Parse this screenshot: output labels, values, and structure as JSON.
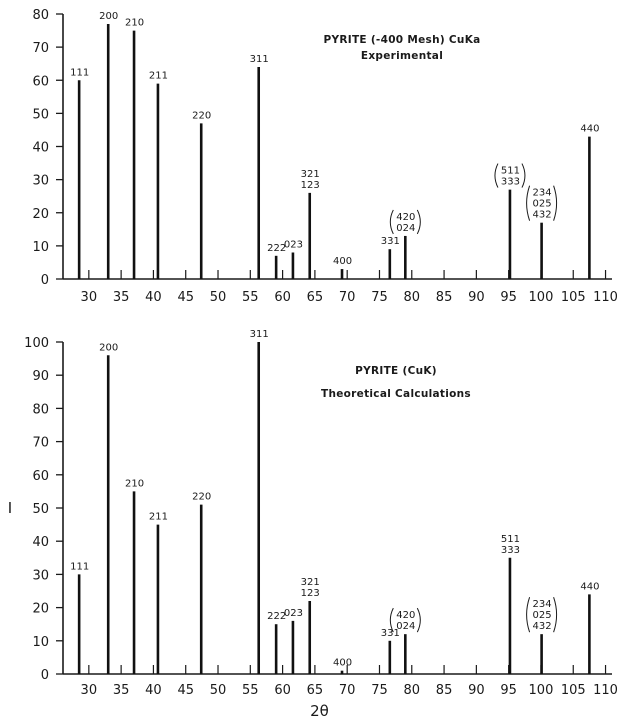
{
  "chart_data": [
    {
      "type": "bar",
      "title": "PYRITE (-400 Mesh) CuKa",
      "subtitle": "Experimental",
      "xlabel": "",
      "ylabel": "",
      "xlim": [
        26,
        111
      ],
      "ylim": [
        0,
        80
      ],
      "xticks": [
        30,
        35,
        40,
        45,
        50,
        55,
        60,
        65,
        70,
        75,
        80,
        85,
        90,
        95,
        100,
        105,
        110
      ],
      "xtick_labels": [
        "30",
        "35",
        "40",
        "45",
        "50",
        "55",
        "60",
        "65",
        "70",
        "75",
        "80",
        "85",
        "90",
        "95",
        "100",
        "105",
        "110"
      ],
      "yticks": [
        0,
        10,
        20,
        30,
        40,
        50,
        60,
        70,
        80
      ],
      "ytick_labels": [
        "0",
        "10",
        "20",
        "30",
        "40",
        "50",
        "60",
        "70",
        "80"
      ],
      "peaks": [
        {
          "x": 28.5,
          "y": 60,
          "label": [
            "111"
          ]
        },
        {
          "x": 33.0,
          "y": 77,
          "label": [
            "200"
          ]
        },
        {
          "x": 37.0,
          "y": 75,
          "label": [
            "210"
          ]
        },
        {
          "x": 40.7,
          "y": 59,
          "label": [
            "211"
          ]
        },
        {
          "x": 47.4,
          "y": 47,
          "label": [
            "220"
          ]
        },
        {
          "x": 56.3,
          "y": 64,
          "label": [
            "311"
          ]
        },
        {
          "x": 59.0,
          "y": 7,
          "label": [
            "222"
          ]
        },
        {
          "x": 61.6,
          "y": 8,
          "label": [
            "023"
          ]
        },
        {
          "x": 64.2,
          "y": 26,
          "label": [
            "321",
            "123"
          ]
        },
        {
          "x": 69.2,
          "y": 3,
          "label": [
            "400"
          ]
        },
        {
          "x": 76.6,
          "y": 9,
          "label": [
            "331"
          ]
        },
        {
          "x": 79.0,
          "y": 13,
          "label": [
            "420",
            "024"
          ],
          "paren": true
        },
        {
          "x": 95.2,
          "y": 27,
          "label": [
            "511",
            "333"
          ],
          "paren": true
        },
        {
          "x": 100.1,
          "y": 17,
          "label": [
            "234",
            "025",
            "432"
          ],
          "paren": true
        },
        {
          "x": 107.5,
          "y": 43,
          "label": [
            "440"
          ]
        }
      ]
    },
    {
      "type": "bar",
      "title": "PYRITE (CuK)",
      "subtitle": "Theoretical Calculations",
      "xlabel": "2θ",
      "ylabel": "I",
      "xlim": [
        26,
        111
      ],
      "ylim": [
        0,
        100
      ],
      "xticks": [
        30,
        35,
        40,
        45,
        50,
        55,
        60,
        65,
        70,
        75,
        80,
        85,
        90,
        95,
        100,
        105,
        110
      ],
      "xtick_labels": [
        "30",
        "35",
        "40",
        "45",
        "50",
        "55",
        "60",
        "65",
        "70",
        "75",
        "80",
        "85",
        "90",
        "95",
        "100",
        "105",
        "110"
      ],
      "yticks": [
        0,
        10,
        20,
        30,
        40,
        50,
        60,
        70,
        80,
        90,
        100
      ],
      "ytick_labels": [
        "0",
        "10",
        "20",
        "30",
        "40",
        "50",
        "60",
        "70",
        "80",
        "90",
        "100"
      ],
      "peaks": [
        {
          "x": 28.5,
          "y": 30,
          "label": [
            "111"
          ]
        },
        {
          "x": 33.0,
          "y": 96,
          "label": [
            "200"
          ]
        },
        {
          "x": 37.0,
          "y": 55,
          "label": [
            "210"
          ]
        },
        {
          "x": 40.7,
          "y": 45,
          "label": [
            "211"
          ]
        },
        {
          "x": 47.4,
          "y": 51,
          "label": [
            "220"
          ]
        },
        {
          "x": 56.3,
          "y": 100,
          "label": [
            "311"
          ]
        },
        {
          "x": 59.0,
          "y": 15,
          "label": [
            "222"
          ]
        },
        {
          "x": 61.6,
          "y": 16,
          "label": [
            "023"
          ]
        },
        {
          "x": 64.2,
          "y": 22,
          "label": [
            "321",
            "123"
          ]
        },
        {
          "x": 69.2,
          "y": 1,
          "label": [
            "400"
          ]
        },
        {
          "x": 76.6,
          "y": 10,
          "label": [
            "331"
          ]
        },
        {
          "x": 79.0,
          "y": 12,
          "label": [
            "420",
            "024"
          ],
          "paren": true
        },
        {
          "x": 95.2,
          "y": 35,
          "label": [
            "511",
            "333"
          ]
        },
        {
          "x": 100.1,
          "y": 12,
          "label": [
            "234",
            "025",
            "432"
          ],
          "paren": true
        },
        {
          "x": 107.5,
          "y": 24,
          "label": [
            "440"
          ]
        }
      ]
    }
  ]
}
